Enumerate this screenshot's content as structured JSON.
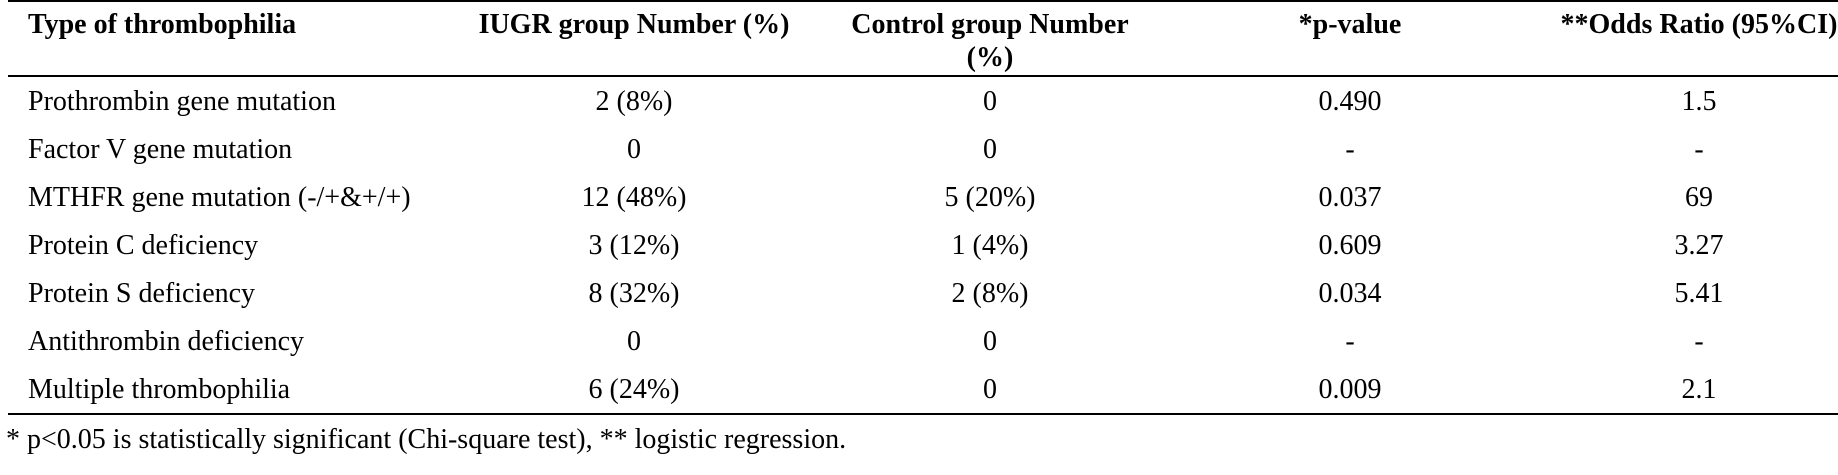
{
  "table": {
    "headers": {
      "type": "Type of thrombophilia",
      "iugr": "IUGR group Number (%)",
      "control": "Control group Number (%)",
      "pvalue": "*p-value",
      "odds": "**Odds Ratio (95%CI)"
    },
    "rows": [
      {
        "type": "Prothrombin gene mutation",
        "iugr": "2 (8%)",
        "control": "0",
        "pvalue": "0.490",
        "odds": "1.5"
      },
      {
        "type": "Factor V gene mutation",
        "iugr": "0",
        "control": "0",
        "pvalue": "-",
        "odds": "-"
      },
      {
        "type": "MTHFR gene mutation (-/+&+/+)",
        "iugr": "12 (48%)",
        "control": "5 (20%)",
        "pvalue": "0.037",
        "odds": "69"
      },
      {
        "type": "Protein C deficiency",
        "iugr": "3 (12%)",
        "control": "1 (4%)",
        "pvalue": "0.609",
        "odds": "3.27"
      },
      {
        "type": "Protein S deficiency",
        "iugr": "8 (32%)",
        "control": "2 (8%)",
        "pvalue": "0.034",
        "odds": "5.41"
      },
      {
        "type": "Antithrombin deficiency",
        "iugr": "0",
        "control": "0",
        "pvalue": "-",
        "odds": "-"
      },
      {
        "type": "Multiple thrombophilia",
        "iugr": "6 (24%)",
        "control": "0",
        "pvalue": "0.009",
        "odds": "2.1"
      }
    ]
  },
  "footnote": "* p<0.05 is statistically significant (Chi-square test), ** logistic regression."
}
